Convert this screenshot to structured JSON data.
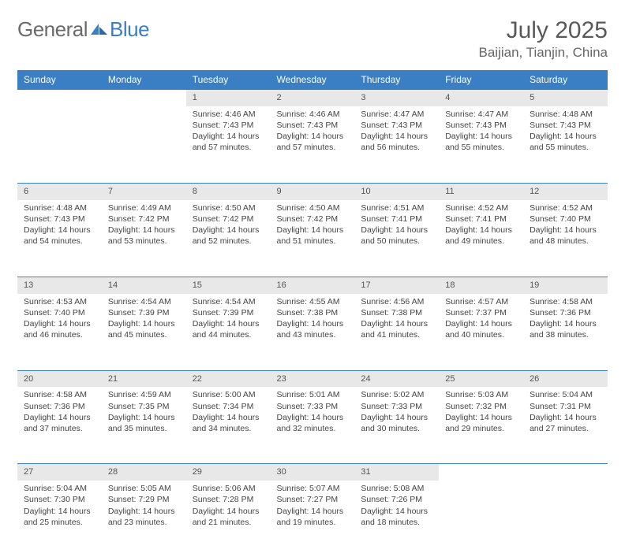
{
  "brand": {
    "part1": "General",
    "part2": "Blue"
  },
  "title": "July 2025",
  "location": "Baijian, Tianjin, China",
  "colors": {
    "header_bg": "#3a7fc4",
    "header_text": "#ffffff",
    "daynum_bg": "#e8e8e8",
    "border": "#3a7fc4",
    "body_text": "#444444",
    "title_text": "#595959"
  },
  "weekdays": [
    "Sunday",
    "Monday",
    "Tuesday",
    "Wednesday",
    "Thursday",
    "Friday",
    "Saturday"
  ],
  "weeks": [
    {
      "nums": [
        "",
        "",
        "1",
        "2",
        "3",
        "4",
        "5"
      ],
      "cells": [
        null,
        null,
        {
          "sunrise": "Sunrise: 4:46 AM",
          "sunset": "Sunset: 7:43 PM",
          "day1": "Daylight: 14 hours",
          "day2": "and 57 minutes."
        },
        {
          "sunrise": "Sunrise: 4:46 AM",
          "sunset": "Sunset: 7:43 PM",
          "day1": "Daylight: 14 hours",
          "day2": "and 57 minutes."
        },
        {
          "sunrise": "Sunrise: 4:47 AM",
          "sunset": "Sunset: 7:43 PM",
          "day1": "Daylight: 14 hours",
          "day2": "and 56 minutes."
        },
        {
          "sunrise": "Sunrise: 4:47 AM",
          "sunset": "Sunset: 7:43 PM",
          "day1": "Daylight: 14 hours",
          "day2": "and 55 minutes."
        },
        {
          "sunrise": "Sunrise: 4:48 AM",
          "sunset": "Sunset: 7:43 PM",
          "day1": "Daylight: 14 hours",
          "day2": "and 55 minutes."
        }
      ]
    },
    {
      "nums": [
        "6",
        "7",
        "8",
        "9",
        "10",
        "11",
        "12"
      ],
      "cells": [
        {
          "sunrise": "Sunrise: 4:48 AM",
          "sunset": "Sunset: 7:43 PM",
          "day1": "Daylight: 14 hours",
          "day2": "and 54 minutes."
        },
        {
          "sunrise": "Sunrise: 4:49 AM",
          "sunset": "Sunset: 7:42 PM",
          "day1": "Daylight: 14 hours",
          "day2": "and 53 minutes."
        },
        {
          "sunrise": "Sunrise: 4:50 AM",
          "sunset": "Sunset: 7:42 PM",
          "day1": "Daylight: 14 hours",
          "day2": "and 52 minutes."
        },
        {
          "sunrise": "Sunrise: 4:50 AM",
          "sunset": "Sunset: 7:42 PM",
          "day1": "Daylight: 14 hours",
          "day2": "and 51 minutes."
        },
        {
          "sunrise": "Sunrise: 4:51 AM",
          "sunset": "Sunset: 7:41 PM",
          "day1": "Daylight: 14 hours",
          "day2": "and 50 minutes."
        },
        {
          "sunrise": "Sunrise: 4:52 AM",
          "sunset": "Sunset: 7:41 PM",
          "day1": "Daylight: 14 hours",
          "day2": "and 49 minutes."
        },
        {
          "sunrise": "Sunrise: 4:52 AM",
          "sunset": "Sunset: 7:40 PM",
          "day1": "Daylight: 14 hours",
          "day2": "and 48 minutes."
        }
      ]
    },
    {
      "nums": [
        "13",
        "14",
        "15",
        "16",
        "17",
        "18",
        "19"
      ],
      "cells": [
        {
          "sunrise": "Sunrise: 4:53 AM",
          "sunset": "Sunset: 7:40 PM",
          "day1": "Daylight: 14 hours",
          "day2": "and 46 minutes."
        },
        {
          "sunrise": "Sunrise: 4:54 AM",
          "sunset": "Sunset: 7:39 PM",
          "day1": "Daylight: 14 hours",
          "day2": "and 45 minutes."
        },
        {
          "sunrise": "Sunrise: 4:54 AM",
          "sunset": "Sunset: 7:39 PM",
          "day1": "Daylight: 14 hours",
          "day2": "and 44 minutes."
        },
        {
          "sunrise": "Sunrise: 4:55 AM",
          "sunset": "Sunset: 7:38 PM",
          "day1": "Daylight: 14 hours",
          "day2": "and 43 minutes."
        },
        {
          "sunrise": "Sunrise: 4:56 AM",
          "sunset": "Sunset: 7:38 PM",
          "day1": "Daylight: 14 hours",
          "day2": "and 41 minutes."
        },
        {
          "sunrise": "Sunrise: 4:57 AM",
          "sunset": "Sunset: 7:37 PM",
          "day1": "Daylight: 14 hours",
          "day2": "and 40 minutes."
        },
        {
          "sunrise": "Sunrise: 4:58 AM",
          "sunset": "Sunset: 7:36 PM",
          "day1": "Daylight: 14 hours",
          "day2": "and 38 minutes."
        }
      ]
    },
    {
      "nums": [
        "20",
        "21",
        "22",
        "23",
        "24",
        "25",
        "26"
      ],
      "cells": [
        {
          "sunrise": "Sunrise: 4:58 AM",
          "sunset": "Sunset: 7:36 PM",
          "day1": "Daylight: 14 hours",
          "day2": "and 37 minutes."
        },
        {
          "sunrise": "Sunrise: 4:59 AM",
          "sunset": "Sunset: 7:35 PM",
          "day1": "Daylight: 14 hours",
          "day2": "and 35 minutes."
        },
        {
          "sunrise": "Sunrise: 5:00 AM",
          "sunset": "Sunset: 7:34 PM",
          "day1": "Daylight: 14 hours",
          "day2": "and 34 minutes."
        },
        {
          "sunrise": "Sunrise: 5:01 AM",
          "sunset": "Sunset: 7:33 PM",
          "day1": "Daylight: 14 hours",
          "day2": "and 32 minutes."
        },
        {
          "sunrise": "Sunrise: 5:02 AM",
          "sunset": "Sunset: 7:33 PM",
          "day1": "Daylight: 14 hours",
          "day2": "and 30 minutes."
        },
        {
          "sunrise": "Sunrise: 5:03 AM",
          "sunset": "Sunset: 7:32 PM",
          "day1": "Daylight: 14 hours",
          "day2": "and 29 minutes."
        },
        {
          "sunrise": "Sunrise: 5:04 AM",
          "sunset": "Sunset: 7:31 PM",
          "day1": "Daylight: 14 hours",
          "day2": "and 27 minutes."
        }
      ]
    },
    {
      "nums": [
        "27",
        "28",
        "29",
        "30",
        "31",
        "",
        ""
      ],
      "cells": [
        {
          "sunrise": "Sunrise: 5:04 AM",
          "sunset": "Sunset: 7:30 PM",
          "day1": "Daylight: 14 hours",
          "day2": "and 25 minutes."
        },
        {
          "sunrise": "Sunrise: 5:05 AM",
          "sunset": "Sunset: 7:29 PM",
          "day1": "Daylight: 14 hours",
          "day2": "and 23 minutes."
        },
        {
          "sunrise": "Sunrise: 5:06 AM",
          "sunset": "Sunset: 7:28 PM",
          "day1": "Daylight: 14 hours",
          "day2": "and 21 minutes."
        },
        {
          "sunrise": "Sunrise: 5:07 AM",
          "sunset": "Sunset: 7:27 PM",
          "day1": "Daylight: 14 hours",
          "day2": "and 19 minutes."
        },
        {
          "sunrise": "Sunrise: 5:08 AM",
          "sunset": "Sunset: 7:26 PM",
          "day1": "Daylight: 14 hours",
          "day2": "and 18 minutes."
        },
        null,
        null
      ]
    }
  ]
}
